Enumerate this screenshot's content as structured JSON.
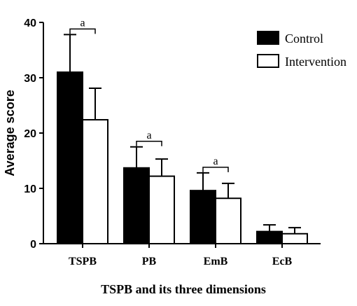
{
  "chart_data": {
    "type": "bar",
    "categories": [
      "TSPB",
      "PB",
      "EmB",
      "EcB"
    ],
    "series": [
      {
        "name": "Control",
        "values": [
          31.0,
          13.7,
          9.6,
          2.2
        ],
        "errors": [
          6.8,
          3.8,
          3.2,
          1.2
        ],
        "color": "#000000"
      },
      {
        "name": "Intervention",
        "values": [
          22.4,
          12.2,
          8.2,
          1.8
        ],
        "errors": [
          5.7,
          3.1,
          2.7,
          1.1
        ],
        "color": "#ffffff"
      }
    ],
    "ylabel": "Average score",
    "xlabel": "TSPB and its three dimensions",
    "ylim": [
      0,
      40
    ],
    "yticks": [
      0,
      10,
      20,
      30,
      40
    ],
    "annotations": [
      {
        "category": "TSPB",
        "text": "a"
      },
      {
        "category": "PB",
        "text": "a"
      },
      {
        "category": "EmB",
        "text": "a"
      }
    ],
    "legend_position": "top-right",
    "grid": false
  }
}
